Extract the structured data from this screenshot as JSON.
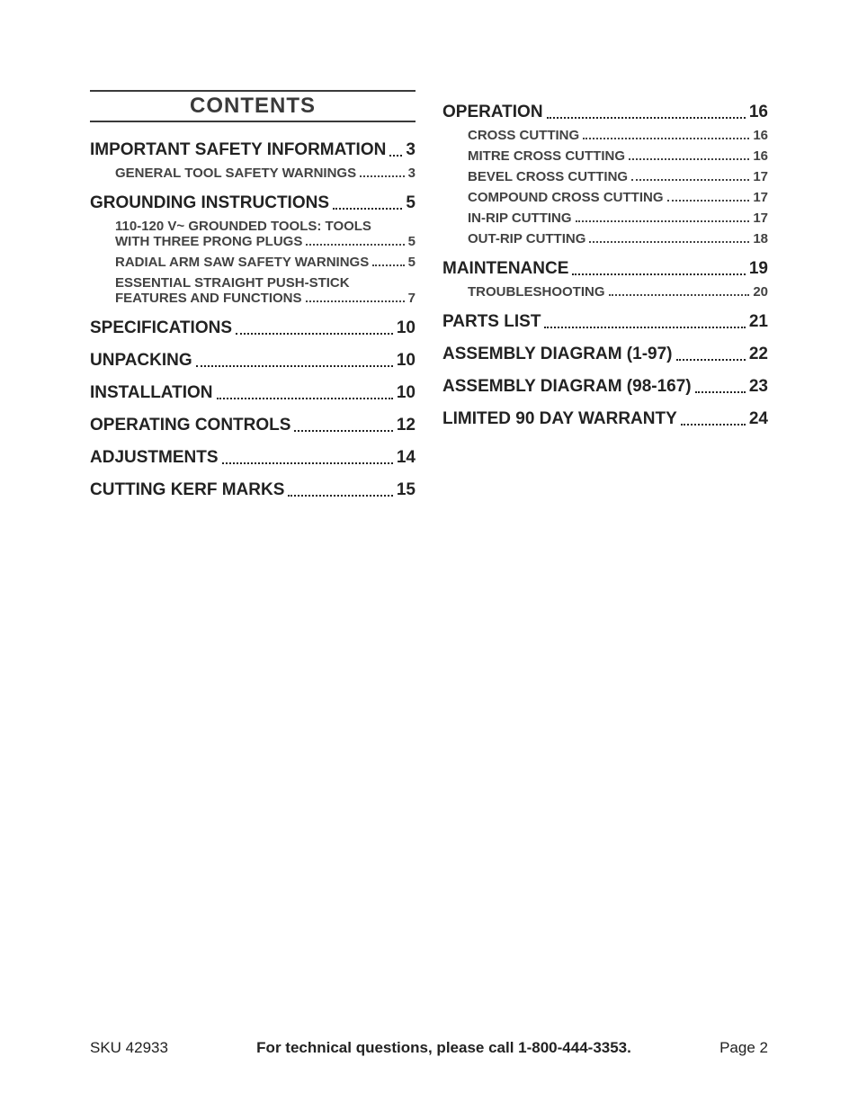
{
  "title": "CONTENTS",
  "colors": {
    "page_bg": "#ffffff",
    "text_main": "#222222",
    "text_sub": "#424242",
    "rule": "#3a3a3a"
  },
  "typography": {
    "heading_fontsize": 24,
    "l1_fontsize": 19,
    "l2_fontsize": 15,
    "footer_fontsize": 17
  },
  "left_col": [
    {
      "level": 1,
      "label": "IMPORTANT SAFETY INFORMATION",
      "page": "3"
    },
    {
      "level": 2,
      "label": "GENERAL TOOL SAFETY WARNINGS",
      "page": "3"
    },
    {
      "level": 1,
      "label": "GROUNDING INSTRUCTIONS",
      "page": "5"
    },
    {
      "level": 2,
      "label": "110-120 V~ GROUNDED TOOLS: TOOLS WITH THREE PRONG PLUGS",
      "page": "5"
    },
    {
      "level": 2,
      "label": "RADIAL ARM SAW SAFETY WARNINGS",
      "page": "5"
    },
    {
      "level": 2,
      "label": "ESSENTIAL STRAIGHT PUSH-STICK FEATURES AND FUNCTIONS",
      "page": "7"
    },
    {
      "level": 1,
      "label": "SPECIFICATIONS",
      "page": "10"
    },
    {
      "level": 1,
      "label": "UNPACKING",
      "page": "10"
    },
    {
      "level": 1,
      "label": "INSTALLATION",
      "page": "10"
    },
    {
      "level": 1,
      "label": "OPERATING CONTROLS",
      "page": "12"
    },
    {
      "level": 1,
      "label": "ADJUSTMENTS",
      "page": "14"
    },
    {
      "level": 1,
      "label": "CUTTING KERF MARKS",
      "page": "15"
    }
  ],
  "right_col": [
    {
      "level": 1,
      "label": "OPERATION",
      "page": "16"
    },
    {
      "level": 2,
      "label": "CROSS CUTTING",
      "page": "16"
    },
    {
      "level": 2,
      "label": "MITRE CROSS CUTTING",
      "page": "16"
    },
    {
      "level": 2,
      "label": "BEVEL CROSS CUTTING",
      "page": "17"
    },
    {
      "level": 2,
      "label": "COMPOUND CROSS CUTTING",
      "page": "17"
    },
    {
      "level": 2,
      "label": "IN-RIP CUTTING",
      "page": "17"
    },
    {
      "level": 2,
      "label": "OUT-RIP CUTTING",
      "page": "18"
    },
    {
      "level": 1,
      "label": "MAINTENANCE",
      "page": "19"
    },
    {
      "level": 2,
      "label": "TROUBLESHOOTING",
      "page": "20"
    },
    {
      "level": 1,
      "label": "PARTS LIST",
      "page": "21"
    },
    {
      "level": 1,
      "label": "ASSEMBLY DIAGRAM (1-97)",
      "page": "22"
    },
    {
      "level": 1,
      "label": "ASSEMBLY DIAGRAM (98-167)",
      "page": "23"
    },
    {
      "level": 1,
      "label": "LIMITED 90 DAY WARRANTY",
      "page": "24"
    }
  ],
  "footer": {
    "left": "SKU 42933",
    "center": "For technical questions, please call 1-800-444-3353.",
    "right": "Page 2"
  }
}
